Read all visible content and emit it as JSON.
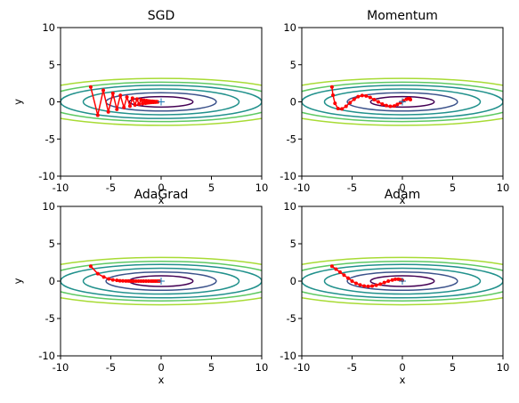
{
  "chart_data": [
    {
      "type": "line",
      "title": "SGD",
      "xlabel": "x",
      "ylabel": "y",
      "xlim": [
        -10,
        10
      ],
      "ylim": [
        -10,
        10
      ],
      "xticks": [
        "-10",
        "-5",
        "0",
        "5",
        "10"
      ],
      "yticks": [
        "-10",
        "-5",
        "0",
        "5",
        "10"
      ],
      "start": [
        -7.0,
        2.0
      ],
      "minimum": [
        0,
        0
      ],
      "path_x": [
        -7.0,
        -6.3,
        -5.75,
        -5.25,
        -4.8,
        -4.4,
        -4.05,
        -3.7,
        -3.4,
        -3.1,
        -2.85,
        -2.6,
        -2.4,
        -2.2,
        -2.0,
        -1.85,
        -1.7,
        -1.55,
        -1.45,
        -1.35,
        -1.25,
        -1.15,
        -1.05,
        -0.95,
        -0.85,
        -0.75,
        -0.65,
        -0.55,
        -0.45,
        -0.35
      ],
      "path_y": [
        2.0,
        -1.8,
        1.55,
        -1.35,
        1.15,
        -1.0,
        0.87,
        -0.75,
        0.65,
        -0.57,
        0.49,
        -0.42,
        0.37,
        -0.32,
        0.28,
        -0.24,
        0.21,
        -0.18,
        0.16,
        -0.14,
        0.12,
        -0.1,
        0.09,
        -0.08,
        0.07,
        -0.06,
        0.05,
        -0.04,
        0.03,
        -0.02
      ]
    },
    {
      "type": "line",
      "title": "Momentum",
      "xlabel": "x",
      "ylabel": "y",
      "xlim": [
        -10,
        10
      ],
      "ylim": [
        -10,
        10
      ],
      "xticks": [
        "-10",
        "-5",
        "0",
        "5",
        "10"
      ],
      "yticks": [
        "-10",
        "-5",
        "0",
        "5",
        "10"
      ],
      "start": [
        -7.0,
        2.0
      ],
      "minimum": [
        0,
        0
      ],
      "path_x": [
        -7.0,
        -6.9,
        -6.7,
        -6.4,
        -6.0,
        -5.6,
        -5.2,
        -4.8,
        -4.4,
        -4.0,
        -3.6,
        -3.2,
        -2.8,
        -2.4,
        -2.0,
        -1.6,
        -1.2,
        -0.8,
        -0.5,
        -0.2,
        0.1,
        0.4,
        0.6,
        0.75,
        0.8
      ],
      "path_y": [
        2.0,
        0.9,
        -0.2,
        -0.9,
        -0.95,
        -0.6,
        -0.1,
        0.35,
        0.7,
        0.85,
        0.8,
        0.6,
        0.3,
        0.0,
        -0.3,
        -0.5,
        -0.6,
        -0.55,
        -0.35,
        -0.1,
        0.15,
        0.35,
        0.45,
        0.4,
        0.3
      ]
    },
    {
      "type": "line",
      "title": "AdaGrad",
      "xlabel": "x",
      "ylabel": "y",
      "xlim": [
        -10,
        10
      ],
      "ylim": [
        -10,
        10
      ],
      "xticks": [
        "-10",
        "-5",
        "0",
        "5",
        "10"
      ],
      "yticks": [
        "-10",
        "-5",
        "0",
        "5",
        "10"
      ],
      "start": [
        -7.0,
        2.0
      ],
      "minimum": [
        0,
        0
      ],
      "path_x": [
        -7.0,
        -6.3,
        -5.7,
        -5.2,
        -4.8,
        -4.4,
        -4.1,
        -3.8,
        -3.5,
        -3.25,
        -3.0,
        -2.75,
        -2.5,
        -2.25,
        -2.0,
        -1.75,
        -1.5,
        -1.25,
        -1.0,
        -0.8,
        -0.6,
        -0.4,
        -0.2
      ],
      "path_y": [
        2.0,
        1.0,
        0.55,
        0.3,
        0.17,
        0.1,
        0.05,
        0.03,
        0.02,
        0.01,
        0.0,
        0.0,
        0.0,
        0.0,
        0.0,
        0.0,
        0.0,
        0.0,
        0.0,
        0.0,
        0.0,
        0.0,
        0.0
      ]
    },
    {
      "type": "line",
      "title": "Adam",
      "xlabel": "x",
      "ylabel": "y",
      "xlim": [
        -10,
        10
      ],
      "ylim": [
        -10,
        10
      ],
      "xticks": [
        "-10",
        "-5",
        "0",
        "5",
        "10"
      ],
      "yticks": [
        "-10",
        "-5",
        "0",
        "5",
        "10"
      ],
      "start": [
        -7.0,
        2.0
      ],
      "minimum": [
        0,
        0
      ],
      "path_x": [
        -7.0,
        -6.6,
        -6.2,
        -5.8,
        -5.4,
        -5.0,
        -4.6,
        -4.2,
        -3.8,
        -3.4,
        -3.0,
        -2.6,
        -2.2,
        -1.8,
        -1.4,
        -1.0,
        -0.7,
        -0.4,
        -0.2,
        0.0
      ],
      "path_y": [
        2.0,
        1.6,
        1.2,
        0.8,
        0.4,
        0.0,
        -0.3,
        -0.5,
        -0.65,
        -0.7,
        -0.65,
        -0.55,
        -0.4,
        -0.2,
        0.0,
        0.15,
        0.25,
        0.25,
        0.2,
        0.1
      ]
    }
  ],
  "contour": {
    "levels": [
      0.5,
      1.5,
      3.0,
      5.0,
      7.0,
      10.0
    ],
    "colors": [
      "#440154",
      "#3b528b",
      "#21918c",
      "#21918c",
      "#5ec962",
      "#a8db34"
    ]
  },
  "colors": {
    "path": "#ff0000",
    "minimum_marker": "#1f77b4"
  }
}
